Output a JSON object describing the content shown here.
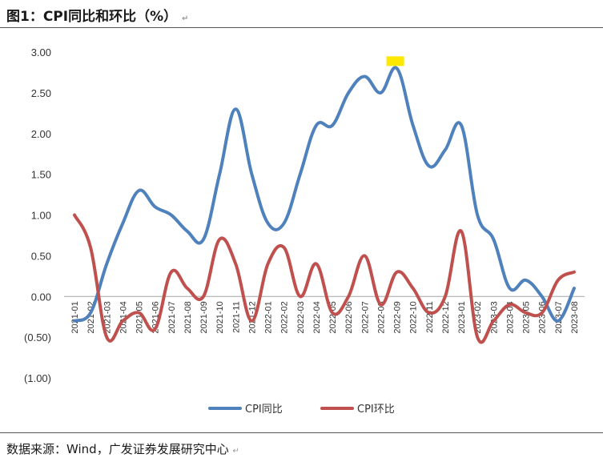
{
  "title": "图1：CPI同比和环比（%）",
  "title_mark": "↵",
  "source": "数据来源：Wind，广发证券发展研究中心",
  "source_mark": "↵",
  "colors": {
    "yoy": "#4f81bd",
    "mom": "#c0504d",
    "highlight": "#ffe800"
  },
  "chart_data": {
    "type": "line",
    "categories": [
      "2021-01",
      "2021-02",
      "2021-03",
      "2021-04",
      "2021-05",
      "2021-06",
      "2021-07",
      "2021-08",
      "2021-09",
      "2021-10",
      "2021-11",
      "2021-12",
      "2022-01",
      "2022-02",
      "2022-03",
      "2022-04",
      "2022-05",
      "2022-06",
      "2022-07",
      "2022-08",
      "2022-09",
      "2022-10",
      "2022-11",
      "2022-12",
      "2023-01",
      "2023-02",
      "2023-03",
      "2023-04",
      "2023-05",
      "2023-06",
      "2023-07",
      "2023-08"
    ],
    "series": [
      {
        "name": "CPI同比",
        "values": [
          -0.3,
          -0.2,
          0.4,
          0.9,
          1.3,
          1.1,
          1.0,
          0.8,
          0.7,
          1.5,
          2.3,
          1.5,
          0.9,
          0.9,
          1.5,
          2.1,
          2.1,
          2.5,
          2.7,
          2.5,
          2.8,
          2.1,
          1.6,
          1.8,
          2.1,
          1.0,
          0.7,
          0.1,
          0.2,
          0.0,
          -0.3,
          0.1
        ]
      },
      {
        "name": "CPI环比",
        "values": [
          1.0,
          0.6,
          -0.5,
          -0.3,
          -0.2,
          -0.4,
          0.3,
          0.1,
          0.0,
          0.7,
          0.4,
          -0.3,
          0.4,
          0.6,
          0.0,
          0.4,
          -0.2,
          0.0,
          0.5,
          -0.1,
          0.3,
          0.1,
          -0.2,
          0.0,
          0.8,
          -0.5,
          -0.3,
          -0.1,
          -0.2,
          -0.2,
          0.2,
          0.3
        ]
      }
    ],
    "y_tick_labels": [
      "3.00",
      "2.50",
      "2.00",
      "1.50",
      "1.00",
      "0.50",
      "0.00",
      "(0.50)",
      "(1.00)"
    ],
    "ylim": [
      -1.0,
      3.0
    ],
    "grid": false,
    "legend_position": "bottom",
    "highlight_marker": {
      "category": "2022-09",
      "note": "yellow square above peak"
    }
  }
}
